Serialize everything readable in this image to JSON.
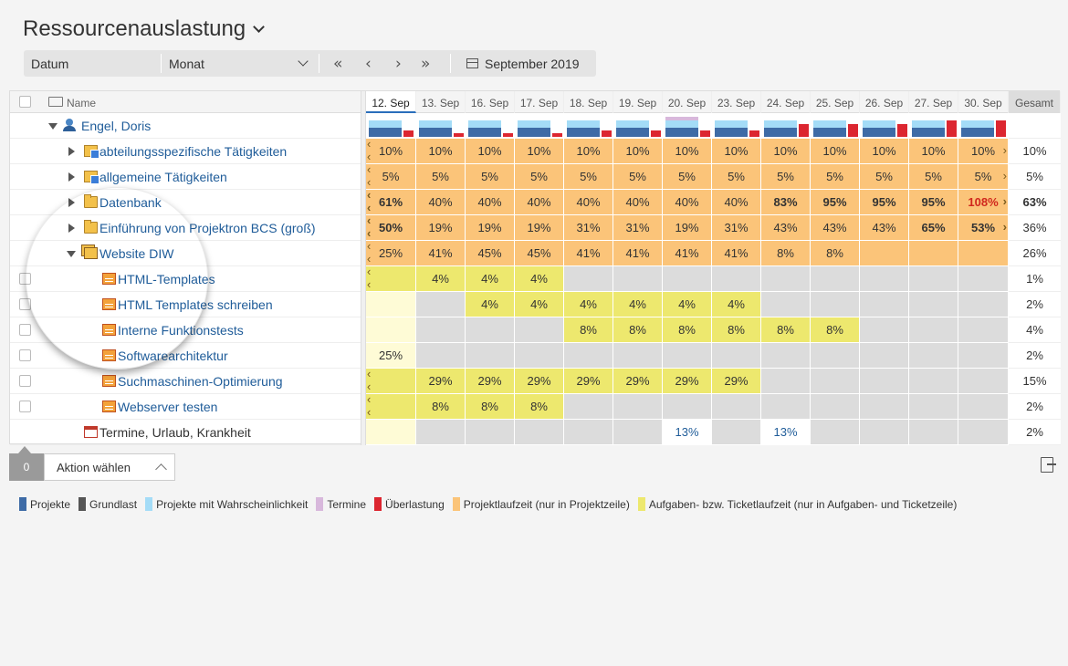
{
  "page": {
    "title": "Ressourcenauslastung"
  },
  "toolbar": {
    "datum_label": "Datum",
    "period_value": "Monat",
    "nav_first": "«",
    "nav_prev": "‹",
    "nav_next": "›",
    "nav_last": "»",
    "month_label": "September 2019"
  },
  "grid": {
    "name_header": "Name",
    "dates": [
      "12. Sep",
      "13. Sep",
      "16. Sep",
      "17. Sep",
      "18. Sep",
      "19. Sep",
      "20. Sep",
      "23. Sep",
      "24. Sep",
      "25. Sep",
      "26. Sep",
      "27. Sep",
      "30. Sep"
    ],
    "total_header": "Gesamt",
    "user": {
      "name": "Engel, Doris",
      "bars": [
        {
          "light": 1,
          "blue": 1,
          "red": 0.4
        },
        {
          "light": 1,
          "blue": 1,
          "red": 0.2
        },
        {
          "light": 1,
          "blue": 1,
          "red": 0.2
        },
        {
          "light": 1,
          "blue": 1,
          "red": 0.2
        },
        {
          "light": 1,
          "blue": 1,
          "red": 0.4
        },
        {
          "light": 1,
          "blue": 1,
          "red": 0.4
        },
        {
          "light": 1,
          "blue": 1,
          "red": 0.4
        },
        {
          "light": 1,
          "blue": 1,
          "red": 0.4
        },
        {
          "light": 1,
          "blue": 1,
          "red": 0.8
        },
        {
          "light": 1,
          "blue": 1,
          "red": 0.8
        },
        {
          "light": 1,
          "blue": 1,
          "red": 0.8
        },
        {
          "light": 1,
          "blue": 1,
          "red": 1.0
        },
        {
          "light": 1,
          "blue": 1,
          "red": 1.0
        }
      ]
    },
    "rows": [
      {
        "label": "abteilungsspezifische Tätigkeiten",
        "icon": "building-folder-icon",
        "values": [
          "10%",
          "10%",
          "10%",
          "10%",
          "10%",
          "10%",
          "10%",
          "10%",
          "10%",
          "10%",
          "10%",
          "10%",
          "10%"
        ],
        "bold": [],
        "total": "10%",
        "fill": "project"
      },
      {
        "label": "allgemeine Tätigkeiten",
        "icon": "building-folder-icon",
        "values": [
          "5%",
          "5%",
          "5%",
          "5%",
          "5%",
          "5%",
          "5%",
          "5%",
          "5%",
          "5%",
          "5%",
          "5%",
          "5%"
        ],
        "bold": [],
        "total": "5%",
        "fill": "project"
      },
      {
        "label": "Datenbank",
        "icon": "folder-icon",
        "values": [
          "61%",
          "40%",
          "40%",
          "40%",
          "40%",
          "40%",
          "40%",
          "40%",
          "83%",
          "95%",
          "95%",
          "95%",
          "108%"
        ],
        "bold": [
          0,
          8,
          9,
          10,
          11
        ],
        "red": [
          12
        ],
        "total": "63%",
        "total_bold": true,
        "fill": "project"
      },
      {
        "label": "Einführung von Projektron BCS (groß)",
        "icon": "folder-icon",
        "values": [
          "50%",
          "19%",
          "19%",
          "19%",
          "31%",
          "31%",
          "19%",
          "31%",
          "43%",
          "43%",
          "43%",
          "65%",
          "53%"
        ],
        "bold": [
          0,
          11,
          12
        ],
        "total": "36%",
        "fill": "project"
      },
      {
        "label": "Website DIW",
        "icon": "multi-folder-icon",
        "values": [
          "25%",
          "41%",
          "45%",
          "45%",
          "41%",
          "41%",
          "41%",
          "41%",
          "8%",
          "8%",
          "",
          "",
          ""
        ],
        "bold": [],
        "total": "26%",
        "fill": "project"
      }
    ],
    "tasks": [
      {
        "label": "HTML-Templates",
        "values": [
          "",
          "4%",
          "4%",
          "4%",
          "",
          "",
          "",
          "",
          "",
          "",
          "",
          "",
          ""
        ],
        "yellow": [
          0,
          1,
          2,
          3
        ],
        "total": "1%"
      },
      {
        "label": "HTML Templates schreiben",
        "values": [
          "",
          "",
          "4%",
          "4%",
          "4%",
          "4%",
          "4%",
          "4%",
          "",
          "",
          "",
          "",
          ""
        ],
        "yellow": [
          2,
          3,
          4,
          5,
          6,
          7
        ],
        "pale": [
          0
        ],
        "total": "2%"
      },
      {
        "label": "Interne Funktionstests",
        "values": [
          "",
          "",
          "",
          "",
          "8%",
          "8%",
          "8%",
          "8%",
          "8%",
          "8%",
          "",
          "",
          ""
        ],
        "yellow": [
          4,
          5,
          6,
          7,
          8,
          9
        ],
        "pale": [
          0
        ],
        "total": "4%"
      },
      {
        "label": "Softwarearchitektur",
        "values": [
          "25%",
          "",
          "",
          "",
          "",
          "",
          "",
          "",
          "",
          "",
          "",
          "",
          ""
        ],
        "yellow": [],
        "pale": [
          0
        ],
        "total": "2%"
      },
      {
        "label": "Suchmaschinen-Optimierung",
        "values": [
          "",
          "29%",
          "29%",
          "29%",
          "29%",
          "29%",
          "29%",
          "29%",
          "",
          "",
          "",
          "",
          ""
        ],
        "yellow": [
          0,
          1,
          2,
          3,
          4,
          5,
          6,
          7
        ],
        "total": "15%"
      },
      {
        "label": "Webserver testen",
        "values": [
          "",
          "8%",
          "8%",
          "8%",
          "",
          "",
          "",
          "",
          "",
          "",
          "",
          "",
          ""
        ],
        "yellow": [
          0,
          1,
          2,
          3
        ],
        "total": "2%"
      }
    ],
    "appointments": {
      "label": "Termine, Urlaub, Krankheit",
      "values": [
        "",
        "",
        "",
        "",
        "",
        "",
        "13%",
        "",
        "13%",
        "",
        "",
        "",
        ""
      ],
      "white": [
        6,
        8
      ],
      "pale": [
        0
      ],
      "total": "2%"
    }
  },
  "footer": {
    "selected_count": "0",
    "action_label": "Aktion wählen"
  },
  "legend": [
    {
      "label": "Projekte",
      "color": "#3e6ba6"
    },
    {
      "label": "Grundlast",
      "color": "#555555"
    },
    {
      "label": "Projekte mit Wahrscheinlichkeit",
      "color": "#a4dcf7"
    },
    {
      "label": "Termine",
      "color": "#d8b8dc"
    },
    {
      "label": "Überlastung",
      "color": "#dc2630"
    },
    {
      "label": "Projektlaufzeit (nur in Projektzeile)",
      "color": "#fbc479"
    },
    {
      "label": "Aufgaben- bzw. Ticketlaufzeit (nur in Aufgaben- und Ticketzeile)",
      "color": "#ede86e"
    }
  ],
  "colors": {
    "project_fill": "#fbc479",
    "task_fill": "#ede86e",
    "pale_fill": "#fefbd6",
    "empty_fill": "#dcdcdc"
  }
}
